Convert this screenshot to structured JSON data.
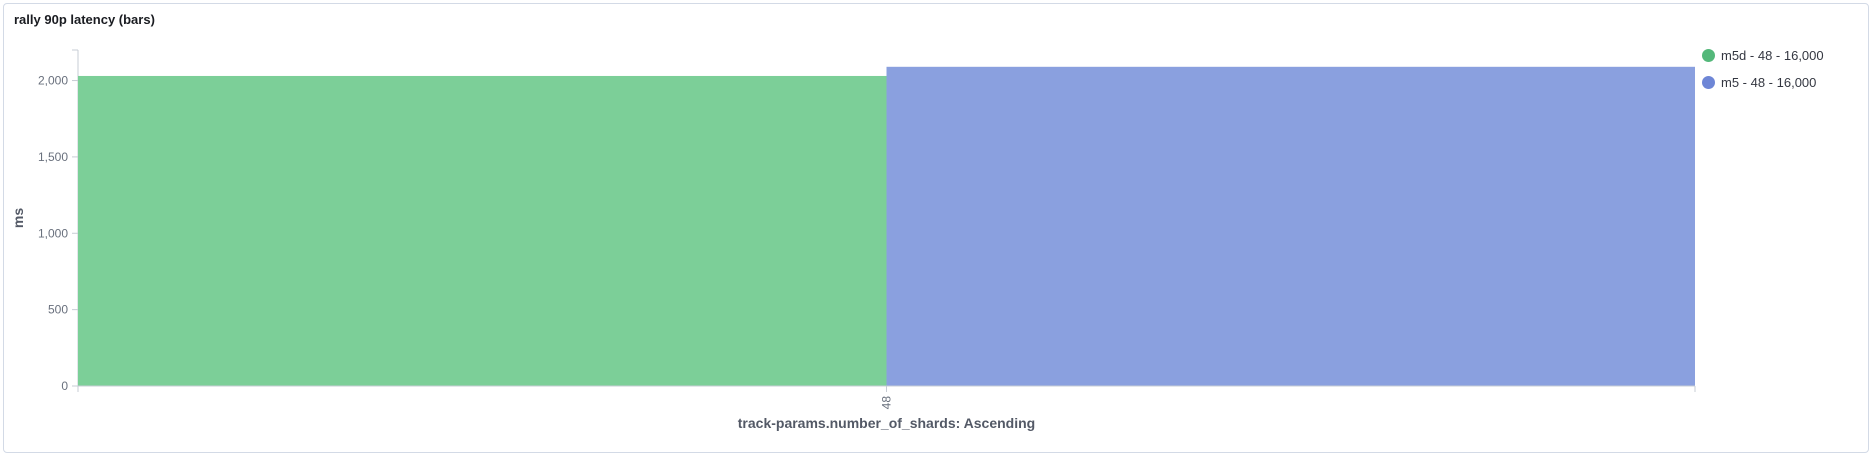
{
  "panel": {
    "title": "rally 90p latency (bars)"
  },
  "chart_data": {
    "type": "bar",
    "categories": [
      "48"
    ],
    "series": [
      {
        "name": "m5d - 48 - 16,000",
        "values": [
          2030
        ],
        "color": "#7ccf98"
      },
      {
        "name": "m5 - 48 - 16,000",
        "values": [
          2090
        ],
        "color": "#8aa0df"
      }
    ],
    "xlabel": "track-params.number_of_shards: Ascending",
    "ylabel": "ms",
    "ylim": [
      0,
      2200
    ],
    "yticks": [
      {
        "value": 0,
        "label": "0"
      },
      {
        "value": 500,
        "label": "500"
      },
      {
        "value": 1000,
        "label": "1,000"
      },
      {
        "value": 1500,
        "label": "1,500"
      },
      {
        "value": 2000,
        "label": "2,000"
      }
    ],
    "grid": false,
    "legend": "right"
  },
  "legend_marker_colors": [
    "#54b87a",
    "#6e86d6"
  ]
}
